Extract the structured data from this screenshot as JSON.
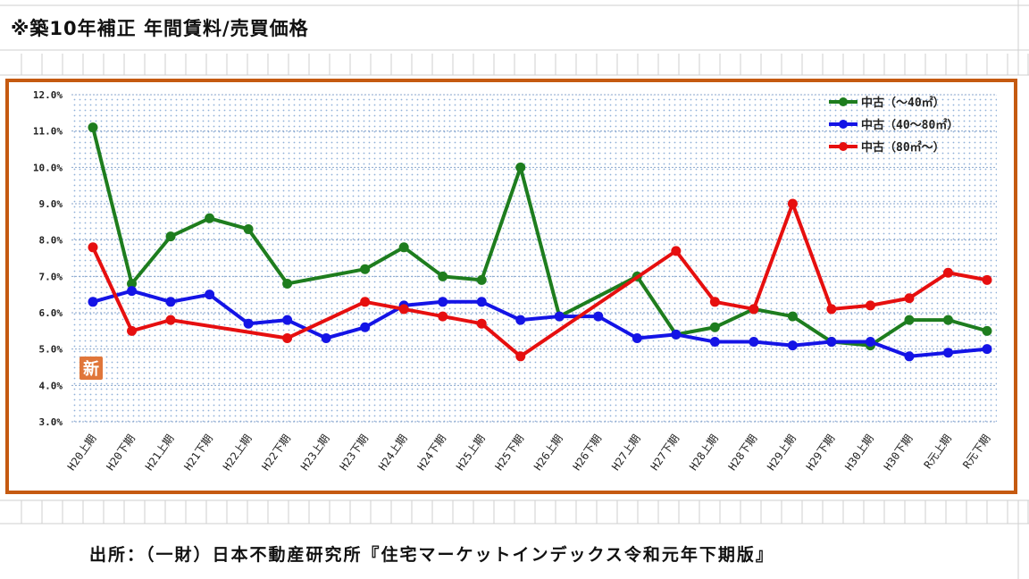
{
  "title": "※築10年補正  年間賃料/売買価格",
  "source": "出所：（一財）日本不動産研究所『住宅マーケットインデックス令和元年下期版』",
  "stamp": "新",
  "colors": {
    "frame": "#c55a11",
    "green": "#1e7d1e",
    "blue": "#1414e6",
    "red": "#e60f0f",
    "grid": "#7f9fc8"
  },
  "chart_data": {
    "type": "line",
    "categories": [
      "H20上期",
      "H20下期",
      "H21上期",
      "H21下期",
      "H22上期",
      "H22下期",
      "H23上期",
      "H23下期",
      "H24上期",
      "H24下期",
      "H25上期",
      "H25下期",
      "H26上期",
      "H26下期",
      "H27上期",
      "H27下期",
      "H28上期",
      "H28下期",
      "H29上期",
      "H29下期",
      "H30上期",
      "H30下期",
      "R元上期",
      "R元下期"
    ],
    "yticks": [
      "12.0%",
      "11.0%",
      "10.0%",
      "9.0%",
      "8.0%",
      "7.0%",
      "6.0%",
      "5.0%",
      "4.0%",
      "3.0%"
    ],
    "ylim": [
      3.0,
      12.0
    ],
    "legend_position": "top-right",
    "series": [
      {
        "name": "中古（～40㎡）",
        "color": "#1e7d1e",
        "values": [
          11.1,
          6.8,
          8.1,
          8.6,
          8.3,
          6.8,
          null,
          7.2,
          7.8,
          7.0,
          6.9,
          10.0,
          5.9,
          null,
          7.0,
          5.4,
          5.6,
          6.1,
          5.9,
          5.2,
          5.1,
          5.8,
          5.8,
          5.5
        ]
      },
      {
        "name": "中古（40～80㎡）",
        "color": "#1414e6",
        "values": [
          6.3,
          6.6,
          6.3,
          6.5,
          5.7,
          5.8,
          5.3,
          5.6,
          6.2,
          6.3,
          6.3,
          5.8,
          5.9,
          5.9,
          5.3,
          5.4,
          5.2,
          5.2,
          5.1,
          5.2,
          5.2,
          4.8,
          4.9,
          5.0
        ]
      },
      {
        "name": "中古（80㎡～）",
        "color": "#e60f0f",
        "values": [
          7.8,
          5.5,
          5.8,
          null,
          null,
          5.3,
          null,
          6.3,
          6.1,
          5.9,
          5.7,
          4.8,
          null,
          null,
          null,
          7.7,
          6.3,
          6.1,
          9.0,
          6.1,
          6.2,
          6.4,
          7.1,
          6.9
        ]
      }
    ]
  }
}
